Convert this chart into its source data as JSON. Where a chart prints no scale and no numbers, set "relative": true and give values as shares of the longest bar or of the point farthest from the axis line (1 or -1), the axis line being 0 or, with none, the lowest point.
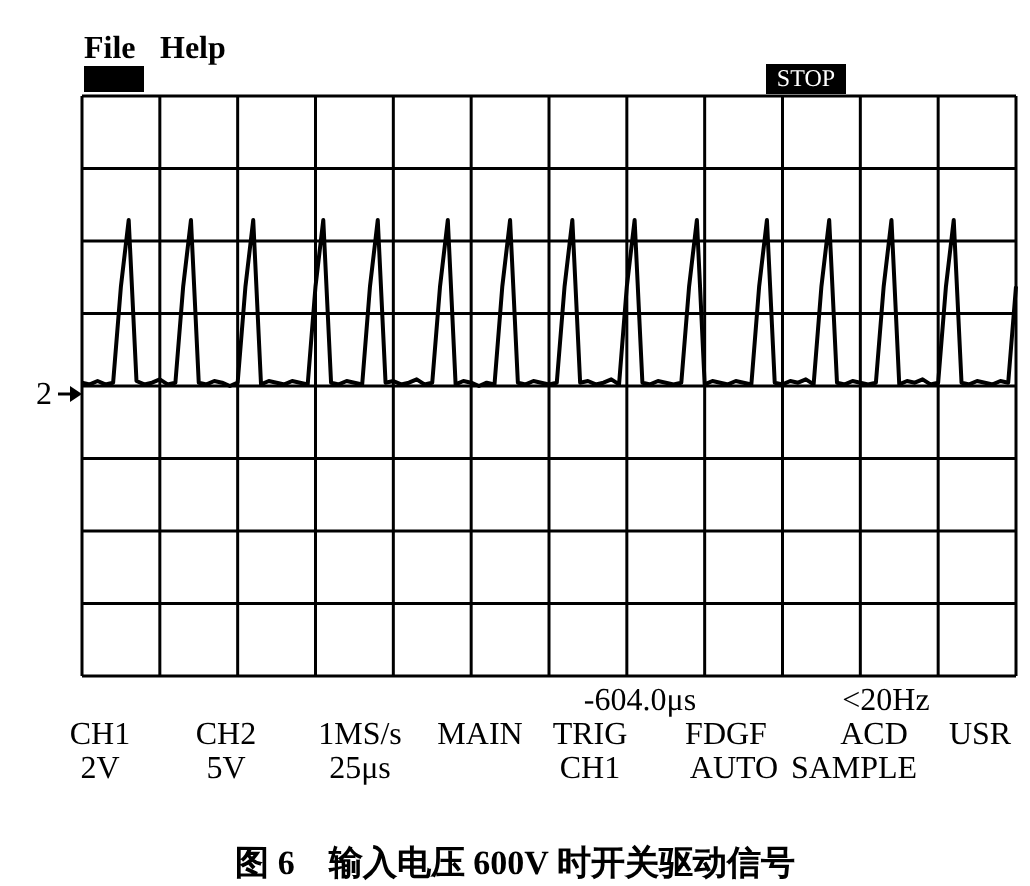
{
  "chart_data": {
    "type": "line",
    "title": "图 6　输入电压 600V 时开关驱动信号",
    "relative": true,
    "grid": true,
    "marker": "none",
    "line_style": "solid",
    "annotations": [
      "File",
      "Help",
      "STOP",
      "2",
      "-604.0μs",
      "<20Hz",
      "CH1",
      "CH2",
      "1MS/s",
      "MAIN",
      "TRIG",
      "FDGF",
      "ACD",
      "USR",
      "2V",
      "5V",
      "25μs",
      "CH1",
      "AUTO",
      "SAMPLE"
    ],
    "categories": [
      null,
      null,
      null,
      null,
      null,
      null,
      null,
      null,
      null,
      null,
      null,
      null,
      null,
      null,
      null,
      null,
      null,
      null,
      null,
      null,
      null,
      null,
      null,
      null,
      null,
      null,
      null,
      null,
      null,
      null,
      null,
      null,
      null,
      null,
      null,
      null,
      null,
      null,
      null,
      null,
      null,
      null,
      null,
      null,
      null,
      null,
      null,
      null,
      null,
      null,
      null,
      null,
      null,
      null,
      null,
      null,
      null,
      null,
      null,
      null,
      null,
      null,
      null,
      null,
      null,
      null,
      null,
      null,
      null,
      null,
      null,
      null,
      null,
      null,
      null,
      null,
      null,
      null,
      null,
      null,
      null,
      null,
      null,
      null,
      null,
      null,
      null,
      null,
      null,
      null,
      null,
      null,
      null,
      null,
      null,
      null,
      null,
      null,
      null,
      null,
      null,
      null,
      null,
      null,
      null,
      null,
      null,
      null,
      null,
      null,
      null,
      null,
      null,
      null,
      null,
      null,
      null,
      null,
      null,
      null,
      null
    ],
    "series": [
      {
        "color": "#000000",
        "values": [
          0.02,
          0.01,
          0.03,
          0.01,
          0.02,
          0.6,
          1,
          0.03,
          0.01,
          0.02,
          0.04,
          0.01,
          0.02,
          0.6,
          1,
          0.02,
          0.01,
          0.03,
          0.02,
          0,
          0.02,
          0.6,
          1,
          0.01,
          0.03,
          0.02,
          0.01,
          0.03,
          0.02,
          0.01,
          0.6,
          1,
          0.02,
          0.01,
          0.03,
          0.02,
          0.01,
          0.6,
          1,
          0.02,
          0.03,
          0.01,
          0.02,
          0.04,
          0.01,
          0.02,
          0.6,
          1,
          0.01,
          0.03,
          0.02,
          0,
          0.02,
          0.01,
          0.6,
          1,
          0.02,
          0.01,
          0.03,
          0.02,
          0.01,
          0.02,
          0.6,
          1,
          0.02,
          0.03,
          0.01,
          0.02,
          0.04,
          0.01,
          0.6,
          1,
          0.02,
          0.01,
          0.03,
          0.02,
          0.01,
          0.02,
          0.6,
          1,
          0.01,
          0.03,
          0.02,
          0.01,
          0.03,
          0.02,
          0.01,
          0.6,
          1,
          0.02,
          0.01,
          0.03,
          0.02,
          0.04,
          0.01,
          0.6,
          1,
          0.02,
          0.01,
          0.03,
          0.02,
          0.01,
          0.02,
          0.6,
          1,
          0.01,
          0.03,
          0.02,
          0.04,
          0.01,
          0.02,
          0.6,
          1,
          0.02,
          0.01,
          0.03,
          0.02,
          0.01,
          0.03,
          0.02,
          0.6
        ]
      }
    ]
  }
}
